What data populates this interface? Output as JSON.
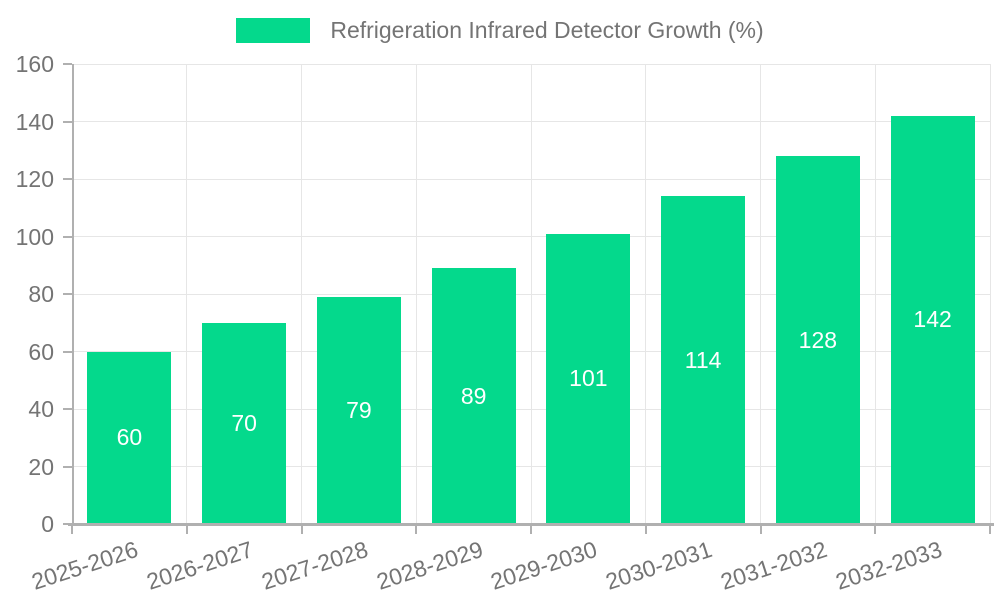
{
  "chart_data": {
    "type": "bar",
    "title": "Refrigeration Infrared Detector Growth (%)",
    "categories": [
      "2025-2026",
      "2026-2027",
      "2027-2028",
      "2028-2029",
      "2029-2030",
      "2030-2031",
      "2031-2032",
      "2032-2033"
    ],
    "values": [
      60,
      70,
      79,
      89,
      101,
      114,
      128,
      142
    ],
    "xlabel": "",
    "ylabel": "",
    "ylim": [
      0,
      160
    ],
    "yticks": [
      0,
      20,
      40,
      60,
      80,
      100,
      120,
      140,
      160
    ],
    "grid": true,
    "legend_position": "top-center",
    "x_label_rotation_deg": -18,
    "value_labels": "inside-center",
    "colors": {
      "bar": "#04D98C",
      "value_label": "#FFFFFF",
      "axis": "#B0B0B0",
      "grid": "#E6E6E6",
      "text": "#747474"
    }
  },
  "legend": {
    "label": "Refrigeration Infrared Detector Growth (%)"
  }
}
